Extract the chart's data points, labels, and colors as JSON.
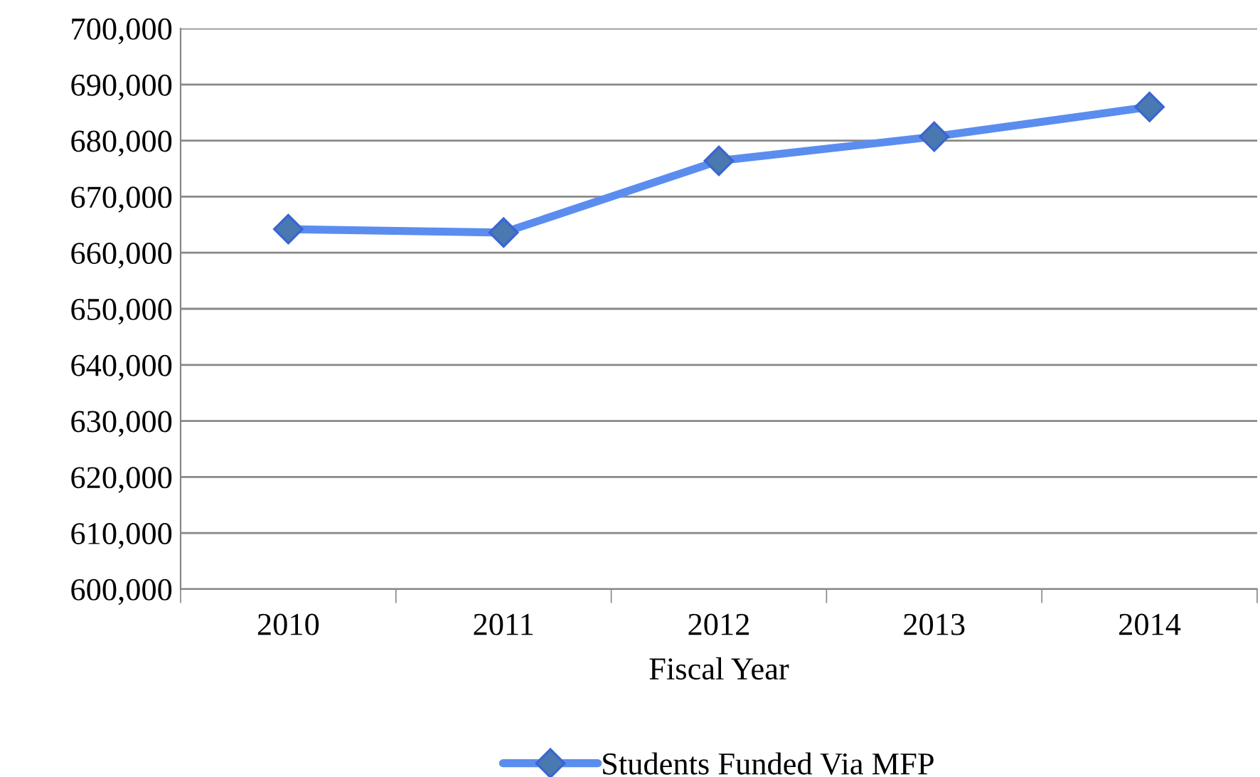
{
  "chart_data": {
    "type": "line",
    "xlabel": "Fiscal Year",
    "categories": [
      "2010",
      "2011",
      "2012",
      "2013",
      "2014"
    ],
    "series": [
      {
        "name": "Students Funded Via MFP",
        "color": "#5b8def",
        "values": [
          664200,
          663600,
          676400,
          680700,
          686000
        ]
      }
    ],
    "ylim": [
      600000,
      700000
    ],
    "yticks": [
      {
        "value": 600000,
        "label": "600,000"
      },
      {
        "value": 610000,
        "label": "610,000"
      },
      {
        "value": 620000,
        "label": "620,000"
      },
      {
        "value": 630000,
        "label": "630,000"
      },
      {
        "value": 640000,
        "label": "640,000"
      },
      {
        "value": 650000,
        "label": "650,000"
      },
      {
        "value": 660000,
        "label": "660,000"
      },
      {
        "value": 670000,
        "label": "670,000"
      },
      {
        "value": 680000,
        "label": "680,000"
      },
      {
        "value": 690000,
        "label": "690,000"
      },
      {
        "value": 700000,
        "label": "700,000"
      }
    ],
    "grid": "y",
    "legend": "bottom",
    "marker": "diamond",
    "line_style": "solid"
  }
}
